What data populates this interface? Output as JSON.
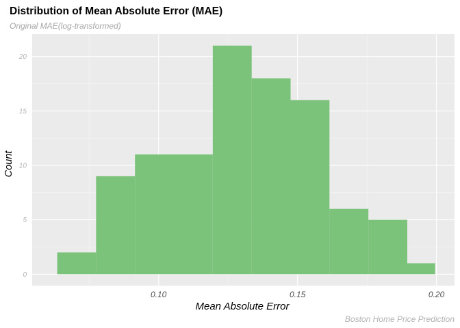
{
  "chart_data": {
    "type": "bar",
    "title": "Distribution of Mean Absolute Error (MAE)",
    "subtitle": "Original MAE(log-transformed)",
    "caption": "Boston Home Price Prediction",
    "xlabel": "Mean Absolute Error",
    "ylabel": "Count",
    "xlim": [
      0.0545,
      0.2065
    ],
    "ylim": [
      -1.05,
      22.05
    ],
    "xticks": [
      0.1,
      0.15,
      0.2
    ],
    "xtick_labels": [
      "0.10",
      "0.15",
      "0.20"
    ],
    "yticks": [
      0,
      5,
      10,
      15,
      20
    ],
    "ytick_labels": [
      "0",
      "5",
      "10",
      "15",
      "20"
    ],
    "bin_edges": [
      0.0635,
      0.0775,
      0.0915,
      0.1055,
      0.1195,
      0.1335,
      0.1475,
      0.1615,
      0.1755,
      0.1895,
      0.1995
    ],
    "values": [
      2,
      9,
      11,
      11,
      21,
      18,
      16,
      6,
      5,
      1
    ],
    "fill_color": "#7bc27b",
    "panel_background": "#ebebeb",
    "grid": true
  }
}
